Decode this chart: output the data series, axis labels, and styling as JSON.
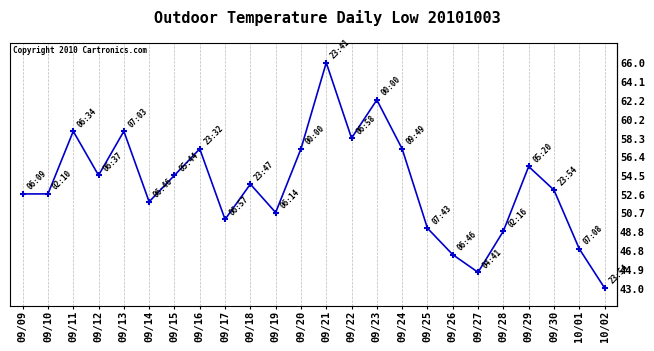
{
  "title": "Outdoor Temperature Daily Low 20101003",
  "copyright": "Copyright 2010 Cartronics.com",
  "line_color": "#0000CC",
  "marker_color": "#0000CC",
  "bg_color": "#FFFFFF",
  "grid_color": "#AAAAAA",
  "dates": [
    "09/09",
    "09/10",
    "09/11",
    "09/12",
    "09/13",
    "09/14",
    "09/15",
    "09/16",
    "09/17",
    "09/18",
    "09/19",
    "09/20",
    "09/21",
    "09/22",
    "09/23",
    "09/24",
    "09/25",
    "09/26",
    "09/27",
    "09/28",
    "09/29",
    "09/30",
    "10/01",
    "10/02"
  ],
  "values": [
    52.6,
    52.6,
    59.0,
    54.5,
    59.0,
    51.8,
    54.5,
    57.2,
    50.0,
    53.6,
    50.7,
    57.2,
    66.0,
    58.3,
    62.2,
    57.2,
    49.1,
    46.4,
    44.6,
    48.8,
    55.4,
    53.0,
    47.0,
    43.0
  ],
  "time_labels": [
    "06:09",
    "02:10",
    "06:34",
    "06:37",
    "07:03",
    "06:46",
    "05:44",
    "23:32",
    "06:57",
    "23:47",
    "06:14",
    "00:00",
    "23:41",
    "06:58",
    "00:00",
    "09:49",
    "07:43",
    "06:46",
    "04:41",
    "02:16",
    "05:20",
    "23:54",
    "07:08",
    "23:54"
  ],
  "yticks": [
    43.0,
    44.9,
    46.8,
    48.8,
    50.7,
    52.6,
    54.5,
    56.4,
    58.3,
    60.2,
    62.2,
    64.1,
    66.0
  ],
  "ylim": [
    41.2,
    68.0
  ],
  "title_fontsize": 11,
  "tick_fontsize": 7.5
}
